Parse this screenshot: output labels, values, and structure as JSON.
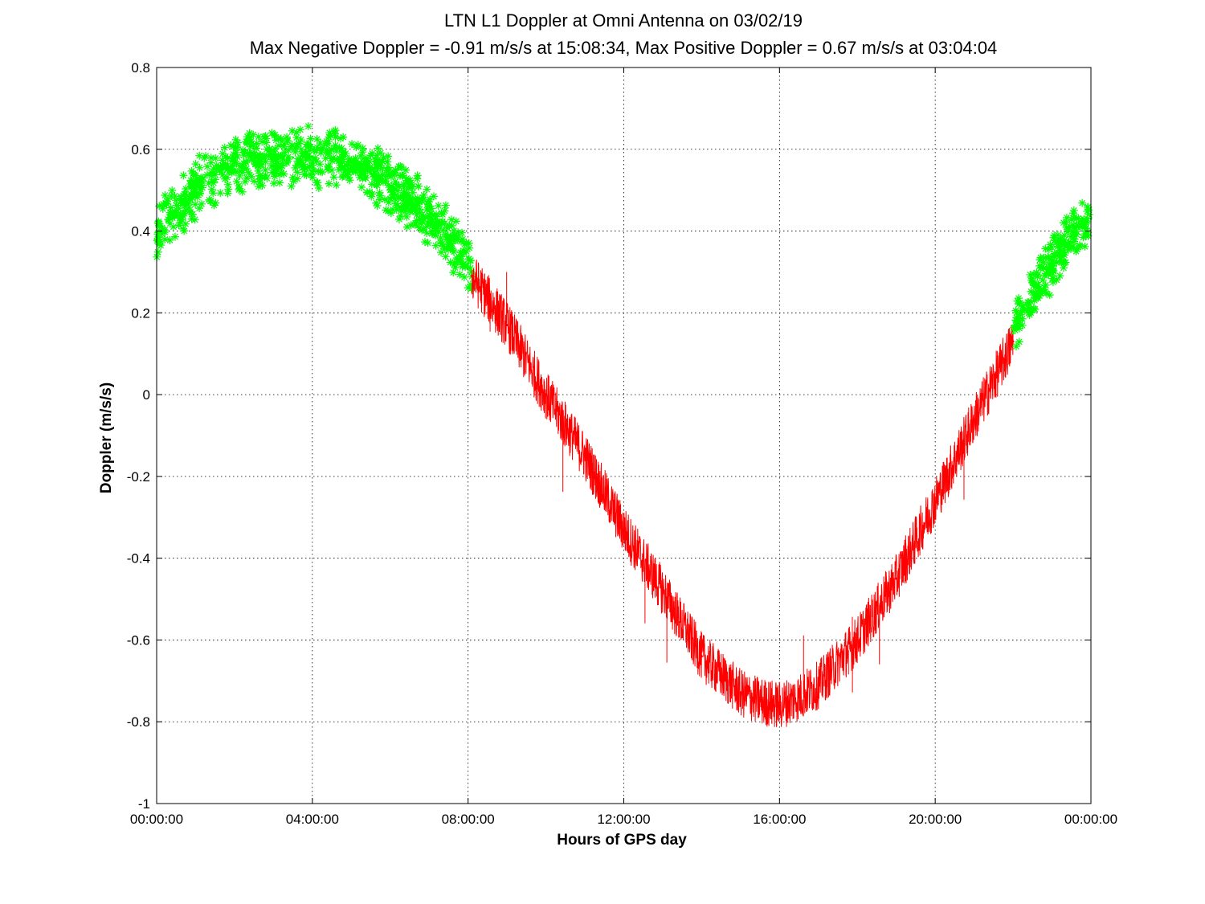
{
  "chart_data": {
    "type": "scatter",
    "title": "LTN  L1 Doppler at Omni Antenna on 03/02/19",
    "subtitle": "Max Negative Doppler = -0.91 m/s/s  at 15:08:34,   Max Positive Doppler = 0.67 m/s/s  at 03:04:04",
    "xlabel": "Hours of GPS day",
    "ylabel": "Doppler (m/s/s)",
    "xlim": [
      0,
      24
    ],
    "ylim": [
      -1,
      0.8
    ],
    "grid": true,
    "x_tick_values": [
      0,
      4,
      8,
      12,
      16,
      20,
      24
    ],
    "x_tick_labels": [
      "00:00:00",
      "04:00:00",
      "08:00:00",
      "12:00:00",
      "16:00:00",
      "20:00:00",
      "00:00:00"
    ],
    "y_tick_values": [
      -1,
      -0.8,
      -0.6,
      -0.4,
      -0.2,
      0,
      0.2,
      0.4,
      0.6,
      0.8
    ],
    "y_tick_labels": [
      "-1",
      "-0.8",
      "-0.6",
      "-0.4",
      "-0.2",
      "0",
      "0.2",
      "0.4",
      "0.6",
      "0.8"
    ],
    "max_negative": {
      "value": -0.91,
      "time": "15:08:34"
    },
    "max_positive": {
      "value": 0.67,
      "time": "03:04:04"
    },
    "series": [
      {
        "color": "#00ff00",
        "marker": "asterisk",
        "spread": 0.08,
        "x": [
          0,
          0.5,
          1,
          1.5,
          2,
          2.5,
          3,
          3.5,
          4,
          4.5,
          5,
          5.5,
          6,
          6.5,
          7,
          7.5,
          8,
          8.1
        ],
        "y": [
          0.41,
          0.45,
          0.5,
          0.54,
          0.56,
          0.58,
          0.58,
          0.58,
          0.58,
          0.58,
          0.57,
          0.54,
          0.51,
          0.48,
          0.44,
          0.38,
          0.32,
          0.29
        ]
      },
      {
        "color": "#ff0000",
        "marker": "line",
        "spread": 0.06,
        "x": [
          8.1,
          9,
          10,
          11,
          12,
          13,
          14,
          15,
          15.5,
          16,
          16.5,
          17,
          18,
          19,
          20,
          21,
          22
        ],
        "y": [
          0.29,
          0.17,
          0.0,
          -0.15,
          -0.33,
          -0.48,
          -0.64,
          -0.73,
          -0.75,
          -0.76,
          -0.74,
          -0.71,
          -0.6,
          -0.45,
          -0.26,
          -0.06,
          0.13
        ]
      },
      {
        "color": "#00ff00",
        "marker": "asterisk",
        "spread": 0.07,
        "x": [
          22,
          22.5,
          23,
          23.5,
          24
        ],
        "y": [
          0.15,
          0.25,
          0.32,
          0.39,
          0.43
        ]
      }
    ]
  }
}
